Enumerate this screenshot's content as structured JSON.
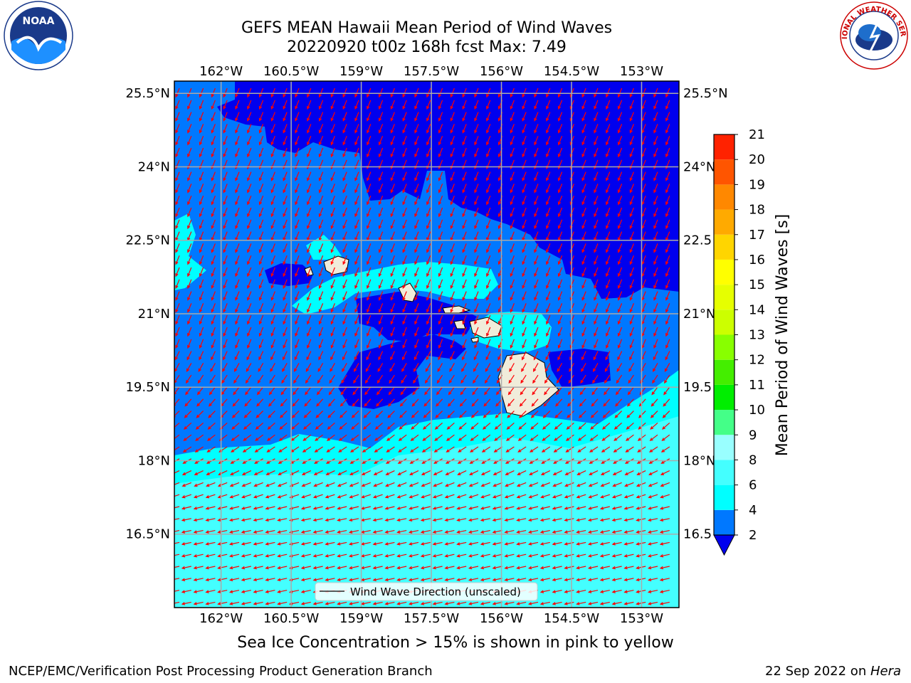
{
  "title": {
    "line1": "GEFS MEAN Hawaii Mean Period of Wind Waves",
    "line2": "20220920 t00z 168h fcst   Max: 7.49"
  },
  "map": {
    "lon_labels": [
      "162°W",
      "160.5°W",
      "159°W",
      "157.5°W",
      "156°W",
      "154.5°W",
      "153°W"
    ],
    "lon_values": [
      -162,
      -160.5,
      -159,
      -157.5,
      -156,
      -154.5,
      -153
    ],
    "lat_labels_left": [
      "25.5°N",
      "24°N",
      "22.5°N",
      "21°N",
      "19.5°N",
      "18°N",
      "16.5°N"
    ],
    "lat_labels_right": [
      "25.5°N",
      "24°N",
      "22.5",
      "21°N",
      "19.5",
      "18°N",
      "16.5"
    ],
    "lat_values": [
      25.5,
      24,
      22.5,
      21,
      19.5,
      18,
      16.5
    ],
    "lon_range": [
      -163,
      -152.2
    ],
    "lat_range": [
      15,
      25.75
    ],
    "legend_label": "Wind Wave Direction (unscaled)",
    "gridlines": true,
    "colors": {
      "below_2": "#0000ee",
      "2_4": "#0078ff",
      "4_6": "#00ffff",
      "6_8": "#44ffff",
      "land": "#f0ecda",
      "arrow": "#ff0000",
      "grid": "#aaaaaa"
    }
  },
  "colorbar": {
    "label": "Mean Period of Wind Waves [s]",
    "ticks": [
      "2",
      "4",
      "6",
      "8",
      "9",
      "10",
      "11",
      "12",
      "13",
      "14",
      "15",
      "16",
      "17",
      "18",
      "19",
      "20",
      "21"
    ],
    "colors": [
      "#0078ff",
      "#00ffff",
      "#44ffff",
      "#99ffff",
      "#44ff88",
      "#00ee00",
      "#44ee00",
      "#88ff00",
      "#ccff00",
      "#e6ff00",
      "#ffff00",
      "#ffd500",
      "#ffaa00",
      "#ff8800",
      "#ff5500",
      "#ff2200",
      "#ff0000"
    ],
    "under_color": "#0000ee"
  },
  "logos": {
    "noaa_text": "NOAA",
    "nws_text": "NATIONAL WEATHER SERVICE",
    "noaa_ring_text": "NATIONAL OCEANIC AND ATMOSPHERIC ADMINISTRATION · U.S. DEPARTMENT OF COMMERCE"
  },
  "footer": {
    "sea_ice_note": "Sea Ice Concentration > 15% is shown in pink to yellow",
    "credit": "NCEP/EMC/Verification Post Processing Product Generation Branch",
    "date": "22 Sep 2022 on ",
    "machine": "Hera"
  }
}
